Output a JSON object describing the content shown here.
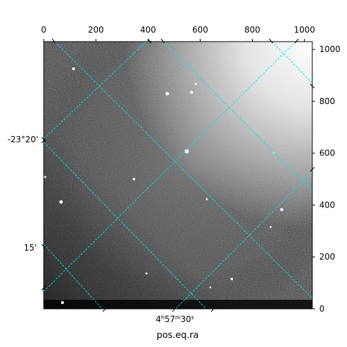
{
  "chart_data": {
    "type": "image",
    "description_colormap": "grayscale",
    "pixel_axes": {
      "x": {
        "range": [
          0,
          1030
        ],
        "ticks": [
          0,
          200,
          400,
          600,
          800,
          1000
        ],
        "tick_labels": [
          "0",
          "200",
          "400",
          "600",
          "800",
          "1000"
        ],
        "position": "top"
      },
      "y": {
        "range": [
          0,
          1030
        ],
        "ticks": [
          0,
          200,
          400,
          600,
          800,
          1000
        ],
        "tick_labels": [
          "0",
          "200",
          "400",
          "600",
          "800",
          "1000"
        ],
        "position": "right"
      }
    },
    "world_axes": {
      "ra": {
        "label": "pos.eq.ra",
        "ticks": [
          {
            "label": "4h57m30s",
            "parts": {
              "h": "4",
              "m": "57",
              "s": "30"
            }
          }
        ]
      },
      "dec": {
        "ticks": [
          {
            "label": "-23°20'"
          },
          {
            "label": "15'"
          }
        ]
      }
    },
    "grid": {
      "on": true,
      "color": "#00e5ee",
      "style": "dashed"
    }
  }
}
